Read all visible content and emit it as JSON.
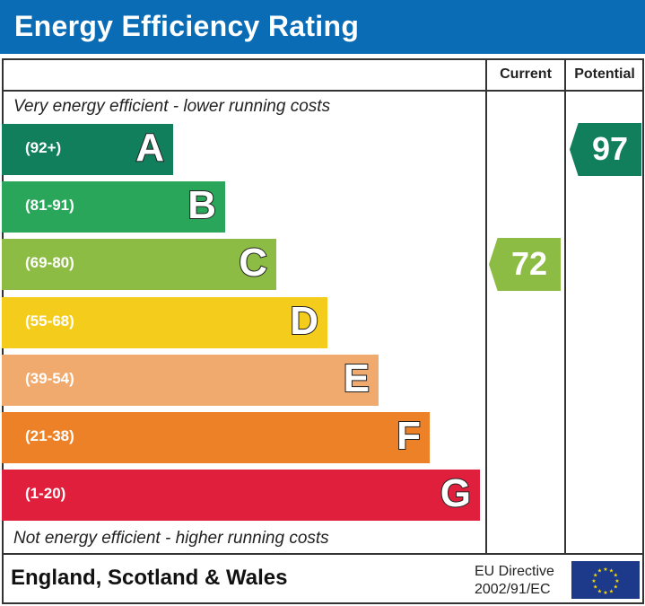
{
  "header": {
    "title": "Energy Efficiency Rating"
  },
  "columns": {
    "current": "Current",
    "potential": "Potential"
  },
  "notes": {
    "top": "Very energy efficient - lower running costs",
    "bottom": "Not energy efficient - higher running costs"
  },
  "footer": {
    "region": "England, Scotland & Wales",
    "directive_line1": "EU Directive",
    "directive_line2": "2002/91/EC"
  },
  "chart_data": {
    "type": "bar",
    "title": "Energy Efficiency Rating",
    "bands": [
      {
        "letter": "A",
        "range": "(92+)",
        "color": "#127f5c"
      },
      {
        "letter": "B",
        "range": "(81-91)",
        "color": "#2aa65a"
      },
      {
        "letter": "C",
        "range": "(69-80)",
        "color": "#8dbc45"
      },
      {
        "letter": "D",
        "range": "(55-68)",
        "color": "#f4cc1c"
      },
      {
        "letter": "E",
        "range": "(39-54)",
        "color": "#f1aa6e"
      },
      {
        "letter": "F",
        "range": "(21-38)",
        "color": "#ec8127"
      },
      {
        "letter": "G",
        "range": "(1-20)",
        "color": "#e01f3d"
      }
    ],
    "current": {
      "value": 72,
      "band": "C",
      "color": "#8dbc45"
    },
    "potential": {
      "value": 97,
      "band": "A",
      "color": "#127f5c"
    }
  }
}
